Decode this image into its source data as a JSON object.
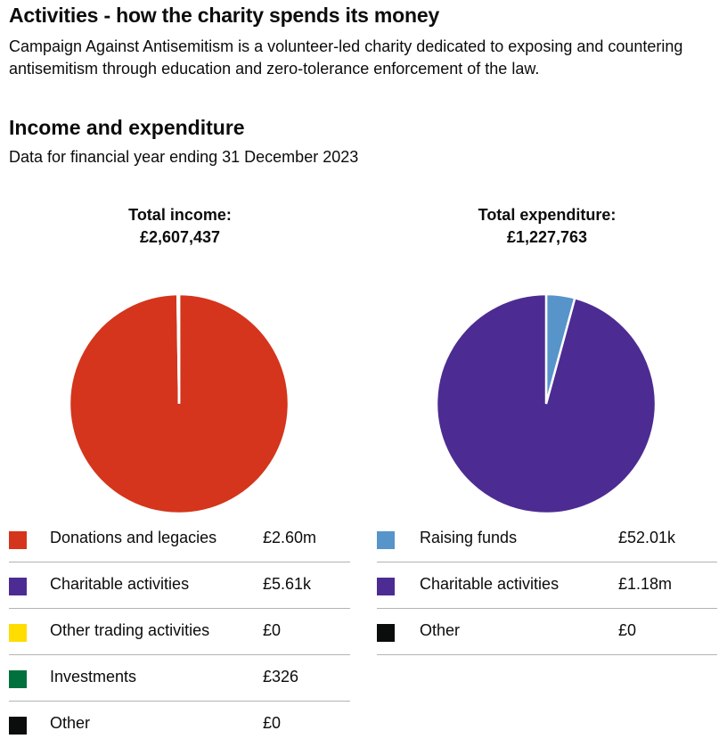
{
  "heading": "Activities - how the charity spends its money",
  "intro": "Campaign Against Antisemitism is a volunteer-led charity dedicated to exposing and countering antisemitism through education and zero-tolerance enforcement of the law.",
  "section": {
    "title": "Income and expenditure",
    "subtitle": "Data for financial year ending 31 December 2023"
  },
  "income": {
    "total_label": "Total income:",
    "total_value": "£2,607,437"
  },
  "expenditure": {
    "total_label": "Total expenditure:",
    "total_value": "£1,227,763"
  },
  "chart_data": [
    {
      "type": "pie",
      "title": "Total income: £2,607,437",
      "slices": [
        {
          "label": "Donations and legacies",
          "value": 2601496,
          "display": "£2.60m",
          "color": "#d4351c"
        },
        {
          "label": "Charitable activities",
          "value": 5615,
          "display": "£5.61k",
          "color": "#4c2c92"
        },
        {
          "label": "Other trading activities",
          "value": 0,
          "display": "£0",
          "color": "#ffdd00"
        },
        {
          "label": "Investments",
          "value": 326,
          "display": "£326",
          "color": "#00703c"
        },
        {
          "label": "Other",
          "value": 0,
          "display": "£0",
          "color": "#0b0c0c"
        }
      ]
    },
    {
      "type": "pie",
      "title": "Total expenditure: £1,227,763",
      "slices": [
        {
          "label": "Raising funds",
          "value": 52010,
          "display": "£52.01k",
          "color": "#5694ca"
        },
        {
          "label": "Charitable activities",
          "value": 1175753,
          "display": "£1.18m",
          "color": "#4c2c92"
        },
        {
          "label": "Other",
          "value": 0,
          "display": "£0",
          "color": "#0b0c0c"
        }
      ]
    }
  ]
}
